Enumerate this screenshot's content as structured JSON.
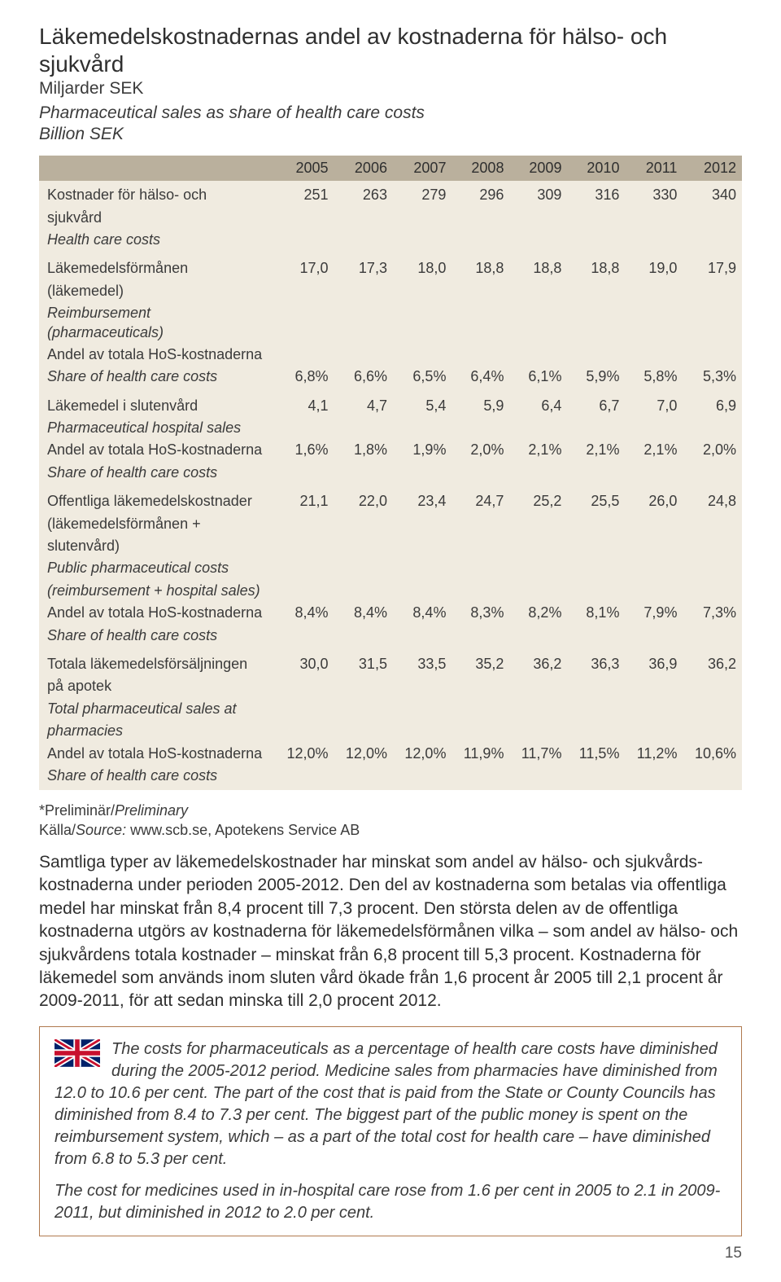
{
  "heading": {
    "title_sv": "Läkemedelskostnadernas andel av kostnaderna för hälso- och sjukvård",
    "unit_sv": "Miljarder SEK",
    "title_en": "Pharmaceutical sales as share of health care costs",
    "unit_en": "Billion SEK"
  },
  "table": {
    "years": [
      "2005",
      "2006",
      "2007",
      "2008",
      "2009",
      "2010",
      "2011",
      "2012"
    ],
    "rows": [
      {
        "lines": [
          {
            "sv": "Kostnader för hälso- och",
            "vals": [
              "251",
              "263",
              "279",
              "296",
              "309",
              "316",
              "330",
              "340"
            ]
          },
          {
            "sv": "sjukvård"
          },
          {
            "en": "Health care costs"
          }
        ]
      },
      {
        "lines": [
          {
            "sv": "Läkemedelsförmånen",
            "vals": [
              "17,0",
              "17,3",
              "18,0",
              "18,8",
              "18,8",
              "18,8",
              "19,0",
              "17,9"
            ]
          },
          {
            "sv": "(läkemedel)"
          },
          {
            "en": "Reimbursement (pharmaceuticals)"
          },
          {
            "sv": "Andel av totala HoS-kostnaderna"
          },
          {
            "en": "Share of health care costs",
            "vals": [
              "6,8%",
              "6,6%",
              "6,5%",
              "6,4%",
              "6,1%",
              "5,9%",
              "5,8%",
              "5,3%"
            ]
          }
        ]
      },
      {
        "lines": [
          {
            "sv": "Läkemedel i slutenvård",
            "vals": [
              "4,1",
              "4,7",
              "5,4",
              "5,9",
              "6,4",
              "6,7",
              "7,0",
              "6,9"
            ]
          },
          {
            "en": "Pharmaceutical hospital sales"
          },
          {
            "sv": "Andel av totala HoS-kostnaderna",
            "vals": [
              "1,6%",
              "1,8%",
              "1,9%",
              "2,0%",
              "2,1%",
              "2,1%",
              "2,1%",
              "2,0%"
            ]
          },
          {
            "en": "Share of health care costs"
          }
        ]
      },
      {
        "lines": [
          {
            "sv": "Offentliga läkemedelskostnader",
            "vals": [
              "21,1",
              "22,0",
              "23,4",
              "24,7",
              "25,2",
              "25,5",
              "26,0",
              "24,8"
            ]
          },
          {
            "sv": "(läkemedelsförmånen +"
          },
          {
            "sv": "slutenvård)"
          },
          {
            "en": "Public pharmaceutical costs"
          },
          {
            "en": "(reimbursement + hospital sales)"
          },
          {
            "sv": "Andel av totala HoS-kostnaderna",
            "vals": [
              "8,4%",
              "8,4%",
              "8,4%",
              "8,3%",
              "8,2%",
              "8,1%",
              "7,9%",
              "7,3%"
            ]
          },
          {
            "en": "Share of health care costs"
          }
        ]
      },
      {
        "lines": [
          {
            "sv": "Totala läkemedelsförsäljningen",
            "vals": [
              "30,0",
              "31,5",
              "33,5",
              "35,2",
              "36,2",
              "36,3",
              "36,9",
              "36,2"
            ]
          },
          {
            "sv": "på apotek"
          },
          {
            "en": "Total pharmaceutical sales at"
          },
          {
            "en": "pharmacies"
          },
          {
            "sv": "Andel av totala HoS-kostnaderna",
            "vals": [
              "12,0%",
              "12,0%",
              "12,0%",
              "11,9%",
              "11,7%",
              "11,5%",
              "11,2%",
              "10,6%"
            ]
          },
          {
            "en": "Share of health care costs"
          }
        ]
      }
    ]
  },
  "footnote": {
    "preliminary": "*Preliminär/",
    "preliminary_en": "Preliminary",
    "source_label": "Källa/",
    "source_label_en": "Source:",
    "source_text": " www.scb.se, Apotekens Service AB"
  },
  "body_sv": "Samtliga typer av läkemedelskostnader har minskat som andel av hälso- och sjukvårds­kostnaderna under perioden 2005-2012. Den del av kostnaderna som betalas via offen­tliga medel har minskat från 8,4 procent till 7,3 procent. Den största delen av de offen­tliga kostnaderna utgörs av kostnaderna för läkemedelsförmånen vilka – som andel av hälso- och sjukvårdens totala kostnader – minskat från 6,8 procent till 5,3 procent. Kostnaderna för läkemedel som används inom sluten vård ökade från 1,6 procent år 2005 till 2,1 procent år 2009-2011, för att sedan minska till 2,0 procent 2012.",
  "box": {
    "p1": "The costs for pharmaceuticals as a percentage of health care costs have diminished during the 2005-2012 period. Medicine sales from pharmacies have diminished from 12.0 to 10.6 per cent. The part of the cost that is paid from the State or County Councils has diminished from 8.4 to 7.3 per cent. The biggest part of the public money is spent on the reimbursement system, which – as a part of the total cost for health care – have diminished from 6.8 to 5.3 per cent.",
    "p2": "The cost for medicines used in in-hospital care rose from 1.6 per cent in 2005 to 2.1 in 2009-2011, but diminished in 2012 to 2.0 per cent."
  },
  "page_number": "15"
}
